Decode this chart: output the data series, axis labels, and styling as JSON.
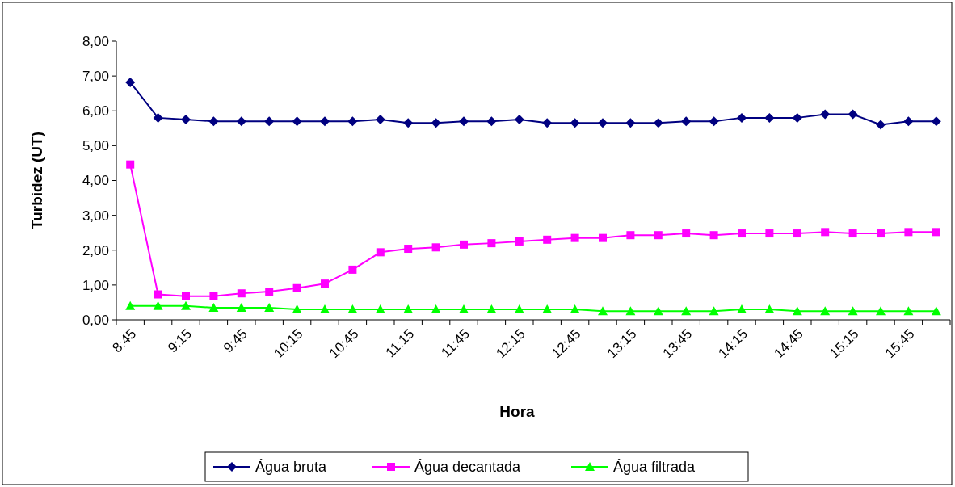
{
  "chart_data": {
    "type": "line",
    "xlabel": "Hora",
    "ylabel": "Turbidez (UT)",
    "categories": [
      "8:45",
      null,
      "9:15",
      null,
      "9:45",
      null,
      "10:15",
      null,
      "10:45",
      null,
      "11:15",
      null,
      "11:45",
      null,
      "12:15",
      null,
      "12:45",
      null,
      "13:15",
      null,
      "13:45",
      null,
      "14:15",
      null,
      "14:45",
      null,
      "15:15",
      null,
      "15:45",
      null
    ],
    "series": [
      {
        "name": "Água bruta",
        "color": "#000080",
        "marker": "diamond",
        "values": [
          6.82,
          5.8,
          5.75,
          5.7,
          5.7,
          5.7,
          5.7,
          5.7,
          5.7,
          5.75,
          5.65,
          5.65,
          5.7,
          5.7,
          5.75,
          5.65,
          5.65,
          5.65,
          5.65,
          5.65,
          5.7,
          5.7,
          5.8,
          5.8,
          5.8,
          5.9,
          5.9,
          5.6,
          5.7,
          5.7
        ]
      },
      {
        "name": "Água decantada",
        "color": "#ff00ff",
        "marker": "square",
        "values": [
          4.46,
          0.73,
          0.68,
          0.68,
          0.76,
          0.81,
          0.91,
          1.04,
          1.44,
          1.94,
          2.04,
          2.08,
          2.16,
          2.2,
          2.25,
          2.3,
          2.35,
          2.35,
          2.43,
          2.43,
          2.48,
          2.43,
          2.48,
          2.48,
          2.48,
          2.52,
          2.48,
          2.48,
          2.52,
          2.52
        ]
      },
      {
        "name": "Água filtrada",
        "color": "#00ff00",
        "marker": "triangle",
        "values": [
          0.4,
          0.4,
          0.4,
          0.35,
          0.35,
          0.35,
          0.3,
          0.3,
          0.3,
          0.3,
          0.3,
          0.3,
          0.3,
          0.3,
          0.3,
          0.3,
          0.3,
          0.25,
          0.25,
          0.25,
          0.25,
          0.25,
          0.3,
          0.3,
          0.25,
          0.25,
          0.25,
          0.25,
          0.25,
          0.25
        ]
      }
    ],
    "ylim": [
      0,
      8
    ],
    "yticks": [
      {
        "value": 0,
        "label": "0,00"
      },
      {
        "value": 1,
        "label": "1,00"
      },
      {
        "value": 2,
        "label": "2,00"
      },
      {
        "value": 3,
        "label": "3,00"
      },
      {
        "value": 4,
        "label": "4,00"
      },
      {
        "value": 5,
        "label": "5,00"
      },
      {
        "value": 6,
        "label": "6,00"
      },
      {
        "value": 7,
        "label": "7,00"
      },
      {
        "value": 8,
        "label": "8,00"
      }
    ],
    "grid": false,
    "legend": "bottom"
  }
}
